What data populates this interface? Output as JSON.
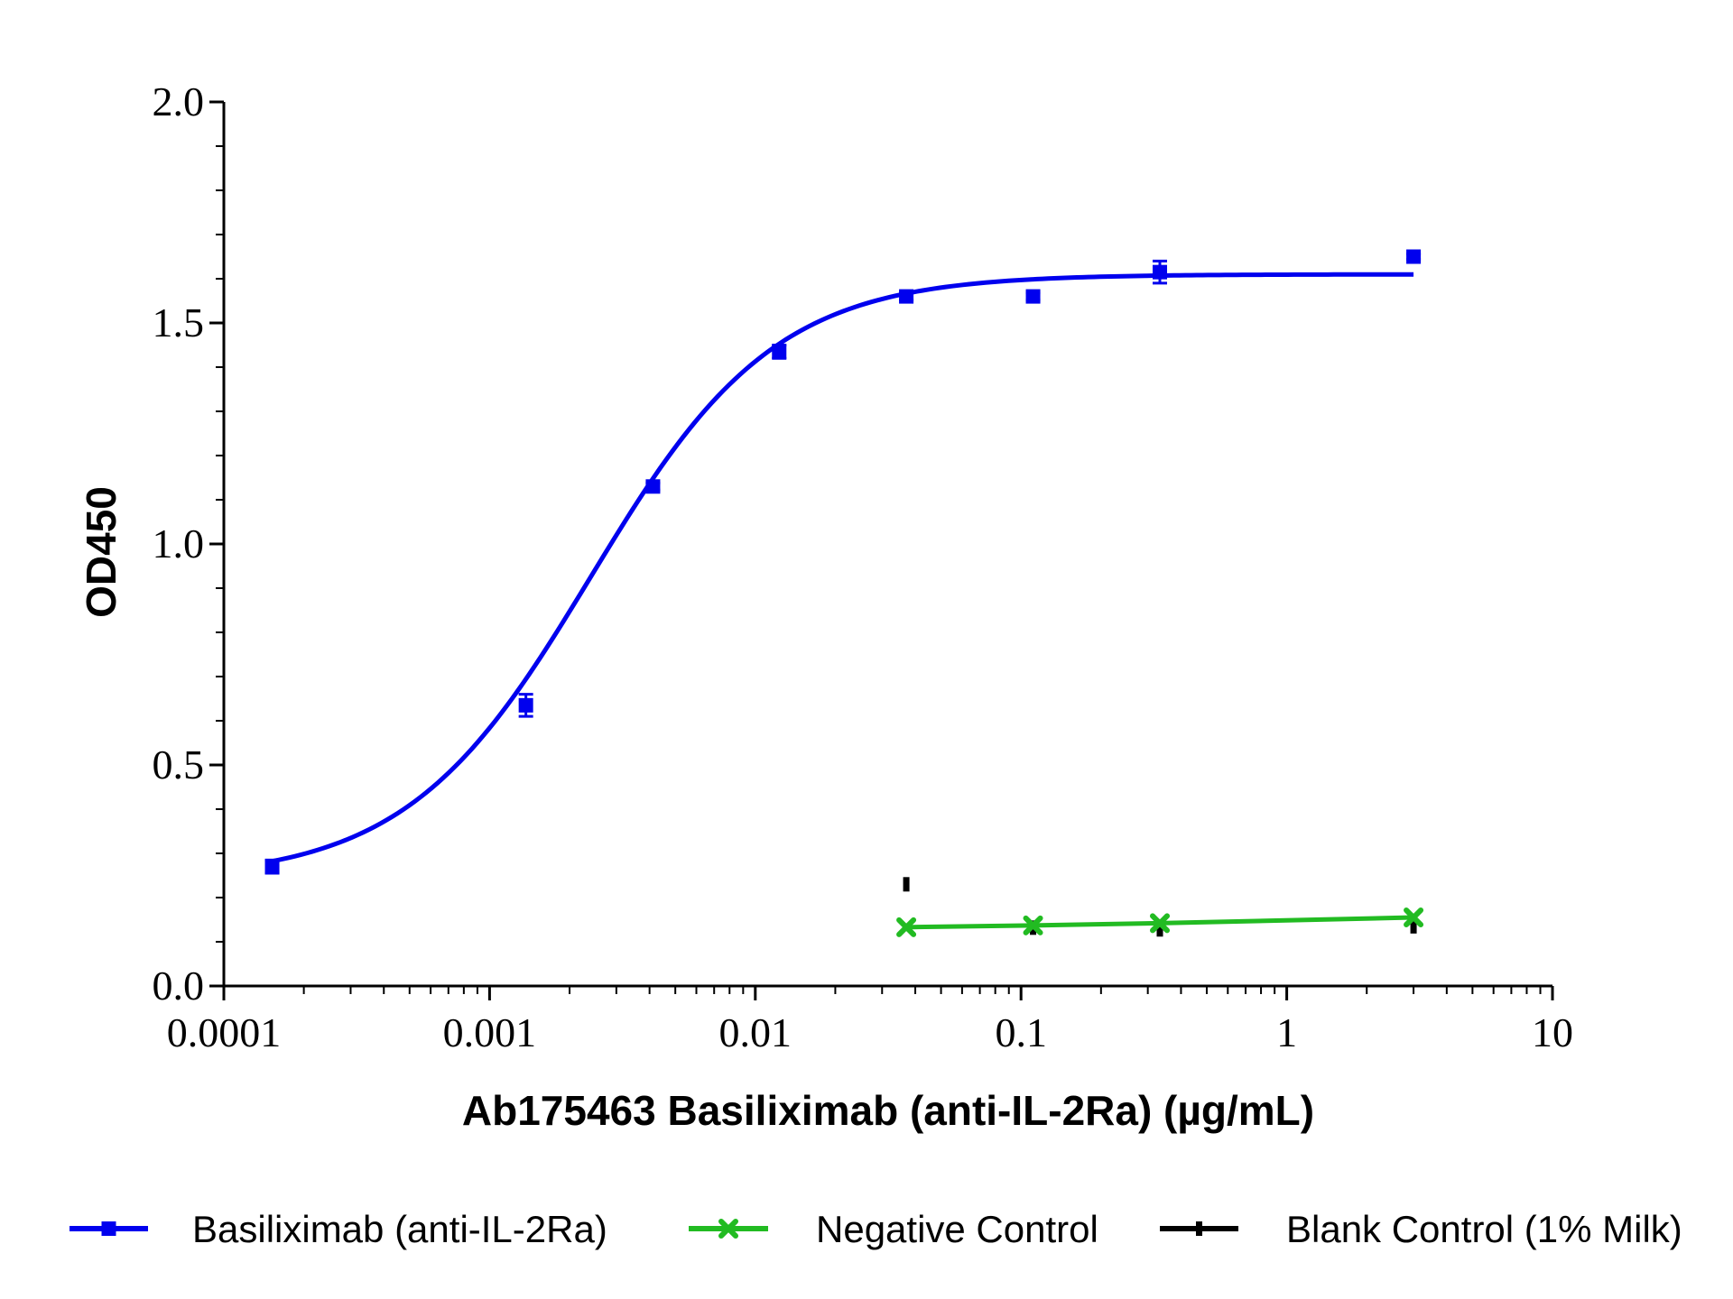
{
  "chart_data": {
    "type": "scatter",
    "x_scale": "log",
    "xlim": [
      0.0001,
      10
    ],
    "ylim": [
      0,
      2
    ],
    "x_tick_labels": [
      "0.0001",
      "0.001",
      "0.01",
      "0.1",
      "1",
      "10"
    ],
    "x_tick_values": [
      0.0001,
      0.001,
      0.01,
      0.1,
      1,
      10
    ],
    "y_tick_labels": [
      "0.0",
      "0.5",
      "1.0",
      "1.5",
      "2.0"
    ],
    "y_tick_values": [
      0,
      0.5,
      1,
      1.5,
      2
    ],
    "xlabel": "Ab175463 Basiliximab (anti-IL-2Ra) (µg/mL)",
    "ylabel": "OD450",
    "grid": false,
    "legend_position": "bottom",
    "series": [
      {
        "name": "Basiliximab (anti-IL-2Ra)",
        "color": "#0000ee",
        "marker": "square",
        "fit": "sigmoid",
        "x": [
          0.000152,
          0.00137,
          0.00412,
          0.0123,
          0.037,
          0.111,
          0.333,
          3.0
        ],
        "y": [
          0.27,
          0.635,
          1.13,
          1.435,
          1.56,
          1.56,
          1.615,
          1.65
        ],
        "err": [
          0.015,
          0.025,
          0.008,
          0.015,
          0.008,
          0.008,
          0.025,
          0.006
        ]
      },
      {
        "name": "Negative Control",
        "color": "#22bb22",
        "marker": "x",
        "fit": "linear",
        "x": [
          0.037,
          0.111,
          0.333,
          3.0
        ],
        "y": [
          0.133,
          0.137,
          0.142,
          0.155
        ]
      },
      {
        "name": "Blank Control (1% Milk)",
        "color": "#000000",
        "marker": "dash",
        "x": [
          0.037,
          0.111,
          0.333,
          3.0
        ],
        "y": [
          0.23,
          0.132,
          0.128,
          0.135
        ]
      }
    ]
  }
}
